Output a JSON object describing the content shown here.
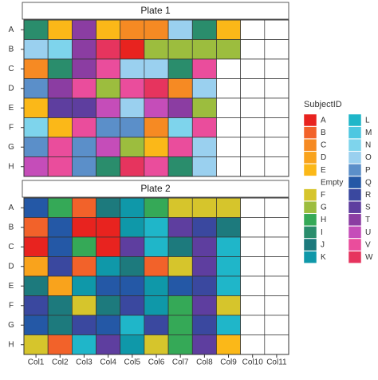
{
  "chart_data": {
    "type": "tile",
    "rows": [
      "A",
      "B",
      "C",
      "D",
      "E",
      "F",
      "G",
      "H"
    ],
    "columns": [
      "Col1",
      "Col2",
      "Col3",
      "Col4",
      "Col5",
      "Col6",
      "Col7",
      "Col8",
      "Col9",
      "Col10",
      "Col11"
    ],
    "legend_title": "SubjectID",
    "legend": [
      {
        "name": "A",
        "color": "#e8231f"
      },
      {
        "name": "B",
        "color": "#f2622a"
      },
      {
        "name": "C",
        "color": "#f68a23"
      },
      {
        "name": "D",
        "color": "#f9a31c"
      },
      {
        "name": "E",
        "color": "#fbb818"
      },
      {
        "name": "Empty",
        "color": "#ffffff"
      },
      {
        "name": "F",
        "color": "#d6c52c"
      },
      {
        "name": "G",
        "color": "#9cbd3e"
      },
      {
        "name": "H",
        "color": "#35a957"
      },
      {
        "name": "I",
        "color": "#2a8d6c"
      },
      {
        "name": "J",
        "color": "#1d7a7d"
      },
      {
        "name": "K",
        "color": "#0f98a9"
      },
      {
        "name": "L",
        "color": "#1fb6c9"
      },
      {
        "name": "M",
        "color": "#4dc7e1"
      },
      {
        "name": "N",
        "color": "#7ed4ec"
      },
      {
        "name": "O",
        "color": "#9ad0ef"
      },
      {
        "name": "P",
        "color": "#5b8fc9"
      },
      {
        "name": "Q",
        "color": "#2458a6"
      },
      {
        "name": "R",
        "color": "#3a489f"
      },
      {
        "name": "S",
        "color": "#5e3e9f"
      },
      {
        "name": "T",
        "color": "#8b3da2"
      },
      {
        "name": "U",
        "color": "#c54db9"
      },
      {
        "name": "V",
        "color": "#ea4d9c"
      },
      {
        "name": "W",
        "color": "#e6345e"
      }
    ],
    "plates": [
      {
        "title": "Plate 1",
        "cells": [
          [
            "I",
            "E",
            "T",
            "E",
            "C",
            "C",
            "O",
            "I",
            "E",
            "Empty",
            "Empty"
          ],
          [
            "O",
            "N",
            "T",
            "W",
            "A",
            "G",
            "G",
            "G",
            "G",
            "Empty",
            "Empty"
          ],
          [
            "C",
            "I",
            "T",
            "V",
            "O",
            "O",
            "I",
            "V",
            "Empty",
            "Empty",
            "Empty"
          ],
          [
            "P",
            "T",
            "V",
            "G",
            "V",
            "W",
            "C",
            "O",
            "Empty",
            "Empty",
            "Empty"
          ],
          [
            "E",
            "S",
            "S",
            "U",
            "O",
            "U",
            "T",
            "G",
            "Empty",
            "Empty",
            "Empty"
          ],
          [
            "N",
            "E",
            "V",
            "P",
            "P",
            "C",
            "N",
            "V",
            "Empty",
            "Empty",
            "Empty"
          ],
          [
            "P",
            "V",
            "P",
            "U",
            "G",
            "E",
            "V",
            "O",
            "Empty",
            "Empty",
            "Empty"
          ],
          [
            "U",
            "V",
            "P",
            "I",
            "W",
            "V",
            "I",
            "O",
            "Empty",
            "Empty",
            "Empty"
          ]
        ]
      },
      {
        "title": "Plate 2",
        "cells": [
          [
            "Q",
            "H",
            "B",
            "J",
            "K",
            "H",
            "F",
            "F",
            "F",
            "Empty",
            "Empty"
          ],
          [
            "B",
            "Q",
            "A",
            "A",
            "K",
            "L",
            "S",
            "R",
            "J",
            "Empty",
            "Empty"
          ],
          [
            "A",
            "Q",
            "H",
            "A",
            "S",
            "L",
            "J",
            "S",
            "L",
            "Empty",
            "Empty"
          ],
          [
            "D",
            "R",
            "B",
            "K",
            "J",
            "B",
            "F",
            "S",
            "L",
            "Empty",
            "Empty"
          ],
          [
            "J",
            "D",
            "K",
            "Q",
            "Q",
            "K",
            "Q",
            "R",
            "L",
            "Empty",
            "Empty"
          ],
          [
            "R",
            "J",
            "F",
            "J",
            "R",
            "K",
            "H",
            "S",
            "F",
            "Empty",
            "Empty"
          ],
          [
            "Q",
            "J",
            "R",
            "Q",
            "L",
            "R",
            "H",
            "R",
            "L",
            "Empty",
            "Empty"
          ],
          [
            "F",
            "B",
            "L",
            "S",
            "K",
            "F",
            "H",
            "S",
            "E",
            "Empty",
            "Empty"
          ]
        ]
      }
    ]
  }
}
